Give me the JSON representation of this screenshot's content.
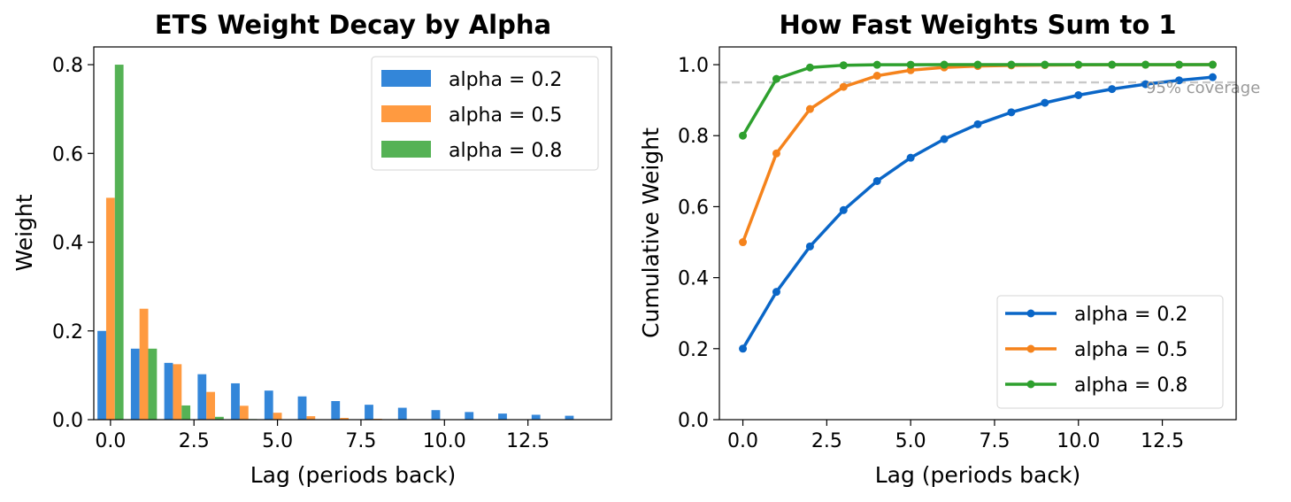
{
  "chart_data": [
    {
      "type": "bar",
      "title": "ETS Weight Decay by Alpha",
      "xlabel": "Lag (periods back)",
      "ylabel": "Weight",
      "xlim": [
        -0.5,
        15.0
      ],
      "ylim": [
        0,
        0.84
      ],
      "x": [
        0,
        1,
        2,
        3,
        4,
        5,
        6,
        7,
        8,
        9,
        10,
        11,
        12,
        13,
        14
      ],
      "xticks": [
        0.0,
        2.5,
        5.0,
        7.5,
        10.0,
        12.5
      ],
      "xtick_labels": [
        "0.0",
        "2.5",
        "5.0",
        "7.5",
        "10.0",
        "12.5"
      ],
      "yticks": [
        0.0,
        0.2,
        0.4,
        0.6,
        0.8
      ],
      "ytick_labels": [
        "0.0",
        "0.2",
        "0.4",
        "0.6",
        "0.8"
      ],
      "legend_position": "top-right",
      "series": [
        {
          "name": "alpha = 0.2",
          "color": "#3386d9",
          "values": [
            0.2,
            0.16,
            0.128,
            0.1024,
            0.0819,
            0.0655,
            0.0524,
            0.0419,
            0.0336,
            0.0268,
            0.0215,
            0.0172,
            0.0137,
            0.011,
            0.0088
          ]
        },
        {
          "name": "alpha = 0.5",
          "color": "#ff9a40",
          "values": [
            0.5,
            0.25,
            0.125,
            0.0625,
            0.0313,
            0.0156,
            0.0078,
            0.0039,
            0.002,
            0.001,
            0.0005,
            0.0002,
            0.0001,
            0.0001,
            0.0
          ]
        },
        {
          "name": "alpha = 0.8",
          "color": "#55b255",
          "values": [
            0.8,
            0.16,
            0.032,
            0.0064,
            0.0013,
            0.0003,
            0.0001,
            0.0,
            0.0,
            0.0,
            0.0,
            0.0,
            0.0,
            0.0,
            0.0
          ]
        }
      ]
    },
    {
      "type": "line",
      "title": "How Fast Weights Sum to 1",
      "xlabel": "Lag (periods back)",
      "ylabel": "Cumulative Weight",
      "xlim": [
        -0.7,
        14.7
      ],
      "ylim": [
        0,
        1.05
      ],
      "x": [
        0,
        1,
        2,
        3,
        4,
        5,
        6,
        7,
        8,
        9,
        10,
        11,
        12,
        13,
        14
      ],
      "xticks": [
        0.0,
        2.5,
        5.0,
        7.5,
        10.0,
        12.5
      ],
      "xtick_labels": [
        "0.0",
        "2.5",
        "5.0",
        "7.5",
        "10.0",
        "12.5"
      ],
      "yticks": [
        0.0,
        0.2,
        0.4,
        0.6,
        0.8,
        1.0
      ],
      "ytick_labels": [
        "0.0",
        "0.2",
        "0.4",
        "0.6",
        "0.8",
        "1.0"
      ],
      "legend_position": "bottom-right",
      "reference_line": {
        "y": 0.95,
        "label": "95% coverage",
        "color": "#c8c8c8"
      },
      "series": [
        {
          "name": "alpha = 0.2",
          "color": "#0a66c7",
          "values": [
            0.2,
            0.36,
            0.488,
            0.5904,
            0.6723,
            0.7379,
            0.7903,
            0.8322,
            0.8658,
            0.8926,
            0.9141,
            0.9313,
            0.945,
            0.956,
            0.9648
          ]
        },
        {
          "name": "alpha = 0.5",
          "color": "#f5831c",
          "values": [
            0.5,
            0.75,
            0.875,
            0.9375,
            0.9688,
            0.9844,
            0.9922,
            0.9961,
            0.998,
            0.999,
            0.9995,
            0.9998,
            0.9999,
            0.9999,
            1.0
          ]
        },
        {
          "name": "alpha = 0.8",
          "color": "#2ea02e",
          "values": [
            0.8,
            0.96,
            0.992,
            0.9984,
            0.9997,
            0.9999,
            1.0,
            1.0,
            1.0,
            1.0,
            1.0,
            1.0,
            1.0,
            1.0,
            1.0
          ]
        }
      ]
    }
  ]
}
